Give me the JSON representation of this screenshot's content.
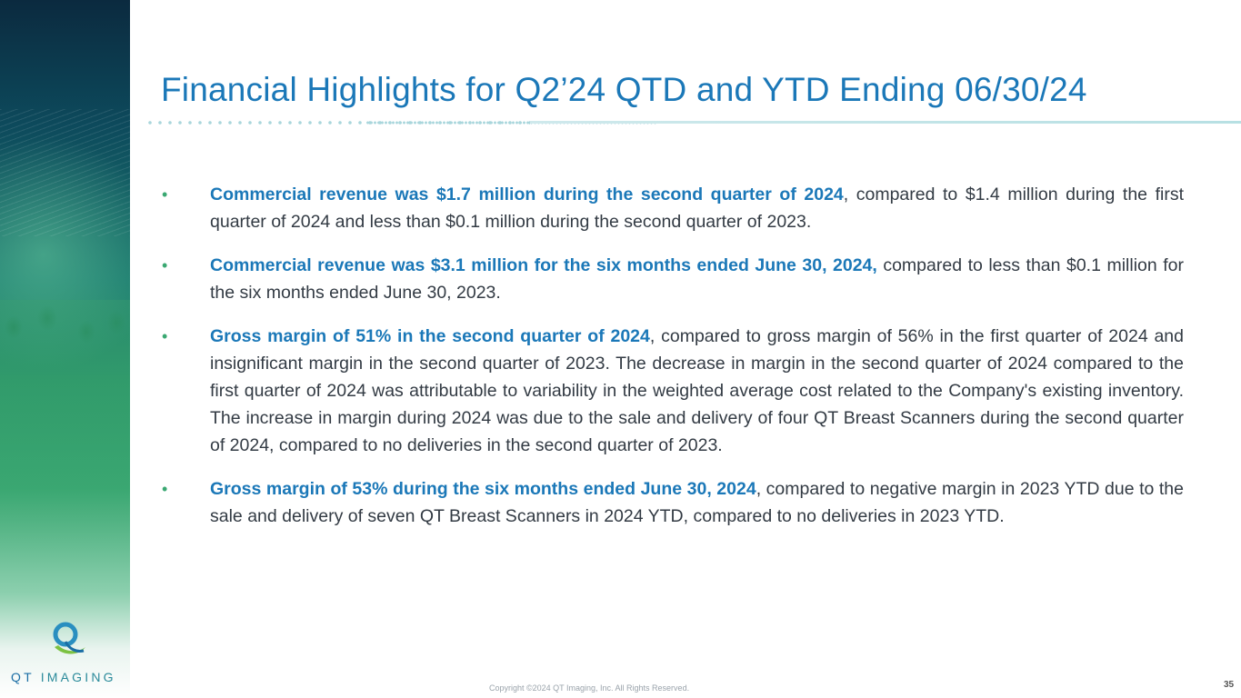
{
  "title": "Financial Highlights for Q2’24 QTD and YTD Ending 06/30/24",
  "logo": {
    "qt": "QT",
    "imaging": "IMAGING"
  },
  "bullets": [
    {
      "highlight": "Commercial revenue was $1.7 million during the second quarter of 2024",
      "rest": ", compared to $1.4 million during the first quarter of 2024 and less than $0.1 million during the second quarter of 2023."
    },
    {
      "highlight": "Commercial revenue was $3.1 million for the six months ended June 30, 2024,",
      "rest": " compared to less than $0.1 million for the six months ended June 30, 2023."
    },
    {
      "highlight": "Gross margin of 51% in the second quarter of 2024",
      "rest": ", compared to gross margin of 56% in the first quarter of 2024 and insignificant margin in the second quarter of 2023. The decrease in margin in the second quarter of 2024 compared to the first quarter of 2024 was attributable to variability in the weighted average cost related to the Company's existing inventory. The increase in margin during 2024 was due to the sale and delivery of four QT Breast Scanners during the second quarter of 2024, compared to no deliveries in the second quarter of 2023."
    },
    {
      "highlight": "Gross margin of 53% during the six months ended June 30, 2024",
      "rest": ", compared to negative margin in 2023 YTD due to the sale and delivery of seven QT Breast Scanners in 2024 YTD, compared to no deliveries in 2023 YTD."
    }
  ],
  "bullet_char": "•",
  "footer": "Copyright ©2024 QT Imaging, Inc. All Rights Reserved.",
  "page_number": "35",
  "colors": {
    "accent_blue": "#1b78b8",
    "bullet_green": "#3aa872",
    "body_text": "#333b44"
  }
}
